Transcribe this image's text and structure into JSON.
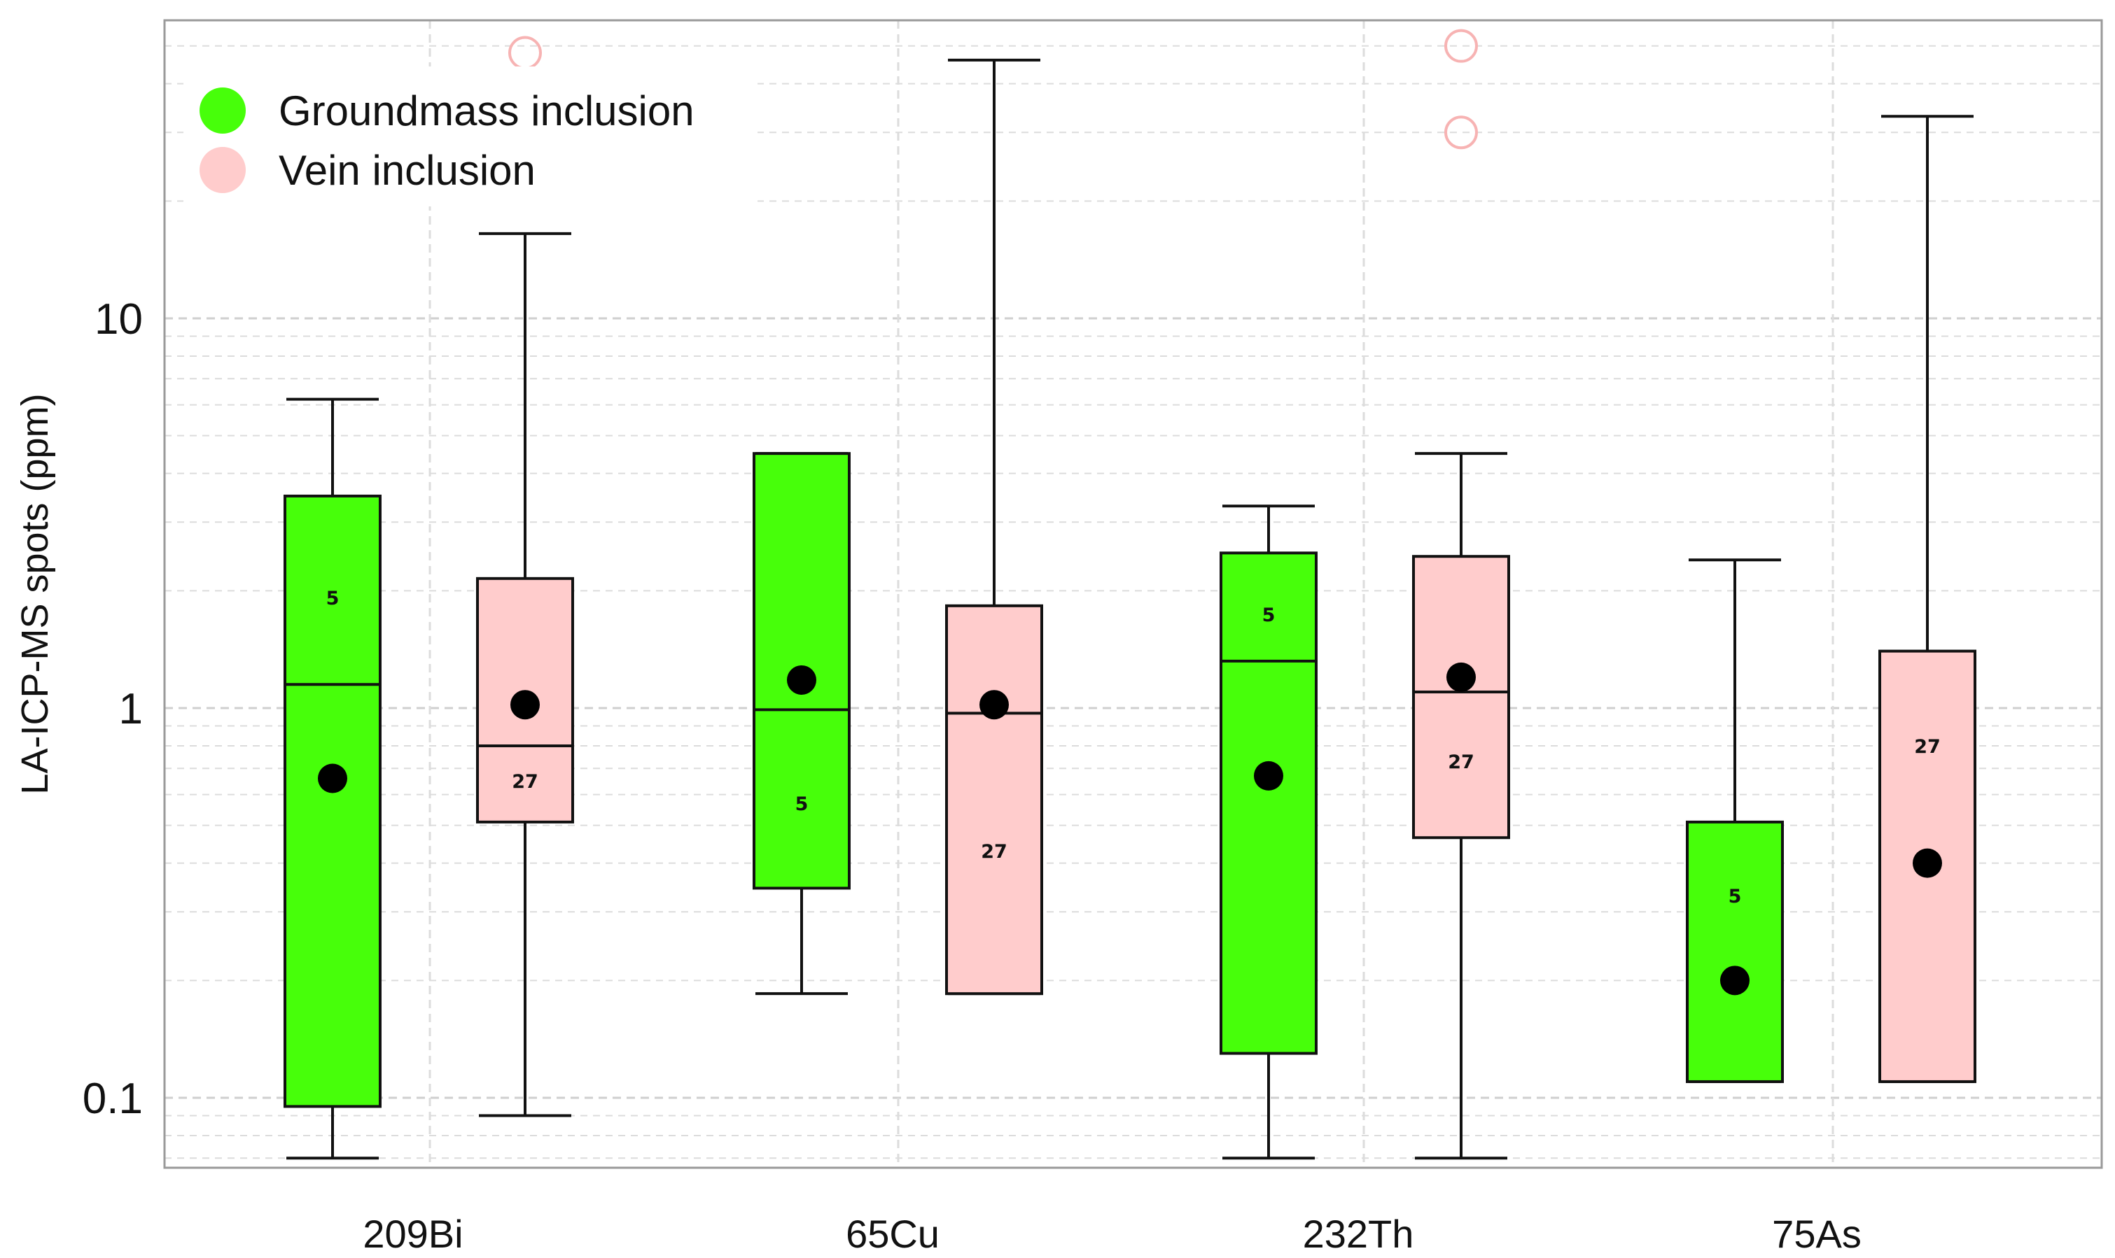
{
  "chart_data": {
    "type": "box",
    "title": "",
    "xlabel": "",
    "ylabel": "LA-ICP-MS spots (ppm)",
    "yscale": "log",
    "ylim": [
      0.062,
      60
    ],
    "y_ticks": [
      {
        "value": 0.1,
        "label": "0.1"
      },
      {
        "value": 1,
        "label": "1"
      },
      {
        "value": 10,
        "label": "10"
      }
    ],
    "grid": true,
    "legend_position": "top-left",
    "categories": [
      "209Bi",
      "65Cu",
      "232Th",
      "75As"
    ],
    "series": [
      {
        "name": "Groundmass  inclusion",
        "color": "#47ff0a",
        "count_label": "5",
        "boxes": [
          {
            "category": "209Bi",
            "whisker_low": 0.07,
            "q1": 0.095,
            "median": 1.15,
            "q3": 3.5,
            "whisker_high": 6.2,
            "mean": 0.66,
            "n": 5,
            "n_label_value": 1.92,
            "outliers": []
          },
          {
            "category": "65Cu",
            "whisker_low": 0.185,
            "q1": 0.345,
            "median": 0.99,
            "q3": 4.5,
            "whisker_high": 4.5,
            "mean": 1.18,
            "n": 5,
            "n_label_value": 0.57,
            "outliers": []
          },
          {
            "category": "232Th",
            "whisker_low": 0.07,
            "q1": 0.13,
            "median": 1.32,
            "q3": 2.5,
            "whisker_high": 3.3,
            "mean": 0.67,
            "n": 5,
            "n_label_value": 1.74,
            "outliers": []
          },
          {
            "category": "75As",
            "whisker_low": 0.11,
            "q1": 0.11,
            "median": null,
            "q3": 0.51,
            "whisker_high": 2.4,
            "mean": 0.2,
            "n": 5,
            "n_label_value": 0.33,
            "outliers": []
          }
        ]
      },
      {
        "name": "Vein inclusion",
        "color": "#ffcccc",
        "count_label": "27",
        "boxes": [
          {
            "category": "209Bi",
            "whisker_low": 0.09,
            "q1": 0.51,
            "median": 0.8,
            "q3": 2.15,
            "whisker_high": 16.5,
            "mean": 1.02,
            "n": 27,
            "n_label_value": 0.65,
            "outliers": [
              48
            ]
          },
          {
            "category": "65Cu",
            "whisker_low": 0.185,
            "q1": 0.185,
            "median": 0.97,
            "q3": 1.83,
            "whisker_high": 46,
            "mean": 1.02,
            "n": 27,
            "n_label_value": 0.43,
            "outliers": []
          },
          {
            "category": "232Th",
            "whisker_low": 0.07,
            "q1": 0.465,
            "median": 1.1,
            "q3": 2.45,
            "whisker_high": 4.5,
            "mean": 1.2,
            "n": 27,
            "n_label_value": 0.73,
            "outliers": [
              30,
              50
            ]
          },
          {
            "category": "75As",
            "whisker_low": 0.11,
            "q1": 0.11,
            "median": null,
            "q3": 1.4,
            "whisker_high": 33,
            "mean": 0.4,
            "n": 27,
            "n_label_value": 0.8,
            "outliers": []
          }
        ]
      }
    ]
  }
}
